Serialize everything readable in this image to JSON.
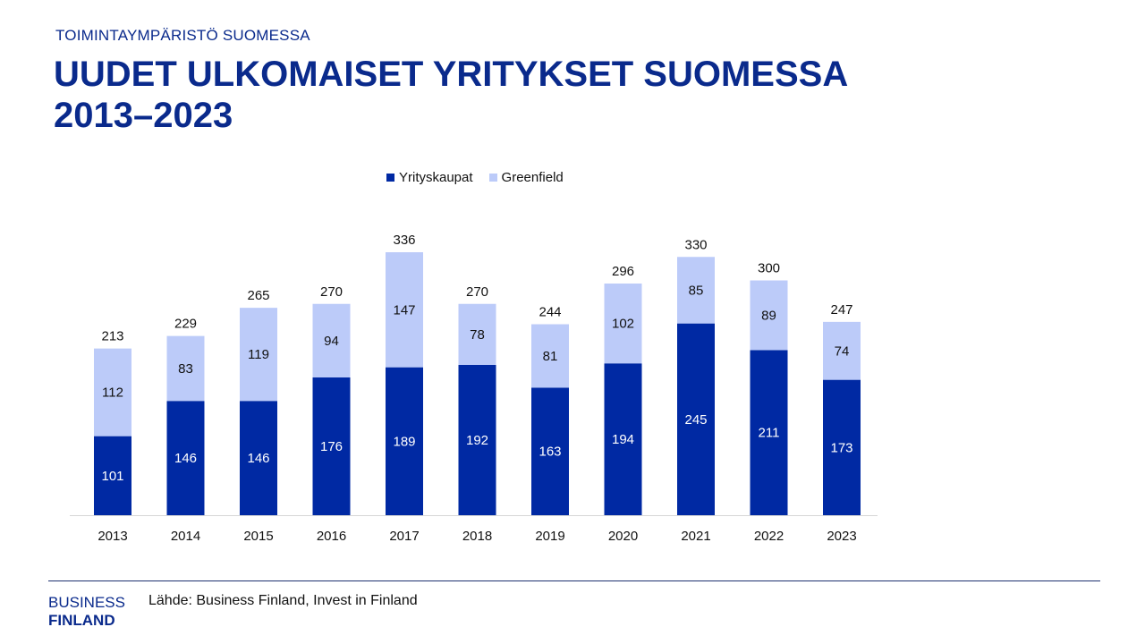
{
  "header": {
    "supertitle": "TOIMINTAYMPÄRISTÖ SUOMESSA",
    "title_line1": "UUDET ULKOMAISET YRITYKSET SUOMESSA",
    "title_line2": "2013–2023"
  },
  "colors": {
    "yrityskaupat": "#0029a3",
    "greenfield": "#bccbf9",
    "title": "#0a2a8c"
  },
  "chart_data": {
    "type": "bar",
    "stacked": true,
    "categories": [
      "2013",
      "2014",
      "2015",
      "2016",
      "2017",
      "2018",
      "2019",
      "2020",
      "2021",
      "2022",
      "2023"
    ],
    "series": [
      {
        "name": "Yrityskaupat",
        "values": [
          101,
          146,
          146,
          176,
          189,
          192,
          163,
          194,
          245,
          211,
          173
        ]
      },
      {
        "name": "Greenfield",
        "values": [
          112,
          83,
          119,
          94,
          147,
          78,
          81,
          102,
          85,
          89,
          74
        ]
      }
    ],
    "totals": [
      213,
      229,
      265,
      270,
      336,
      270,
      244,
      296,
      330,
      300,
      247
    ],
    "legend_position": "top",
    "grid": false
  },
  "footer": {
    "logo_line1": "BUSINESS",
    "logo_line2": "FINLAND",
    "source": "Lähde: Business Finland, Invest in Finland"
  }
}
